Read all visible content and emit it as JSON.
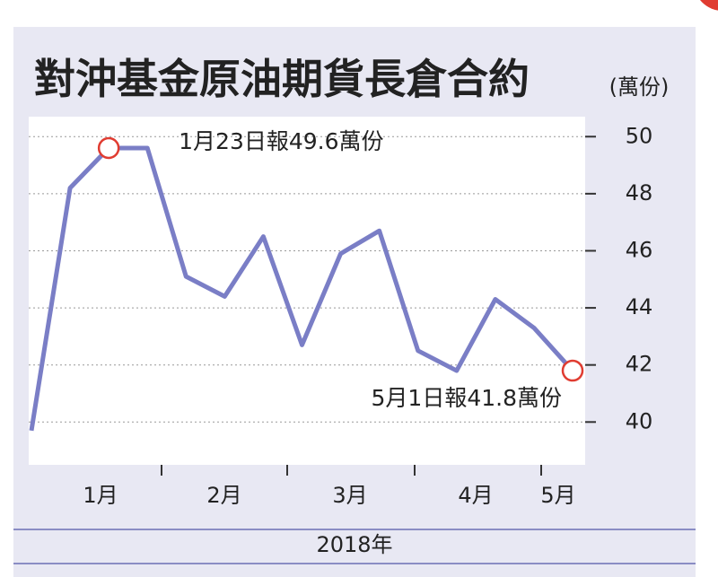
{
  "chart_data": {
    "type": "line",
    "title": "對沖基金原油期貨長倉合約",
    "unit_label": "(萬份)",
    "x_label": "2018年",
    "month_labels": [
      "1月",
      "2月",
      "3月",
      "4月",
      "5月"
    ],
    "categories": [
      null,
      null,
      null,
      null,
      null,
      null,
      null,
      null,
      null,
      null,
      null,
      null,
      null,
      null,
      null
    ],
    "series": [
      {
        "color": "#7a7ec6",
        "values": [
          39.7,
          48.2,
          49.6,
          49.6,
          45.1,
          44.4,
          46.5,
          42.7,
          45.9,
          46.7,
          42.5,
          41.8,
          44.3,
          43.3,
          41.8
        ]
      }
    ],
    "annotations": [
      {
        "text": "1月23日報49.6萬份",
        "point": 2
      },
      {
        "text": "5月1日報41.8萬份",
        "point": 14
      }
    ],
    "marker_color": "#e03c31",
    "ylim": [
      38.5,
      50.7
    ],
    "yticks": [
      40,
      42,
      44,
      46,
      48,
      50
    ],
    "grid": true
  }
}
